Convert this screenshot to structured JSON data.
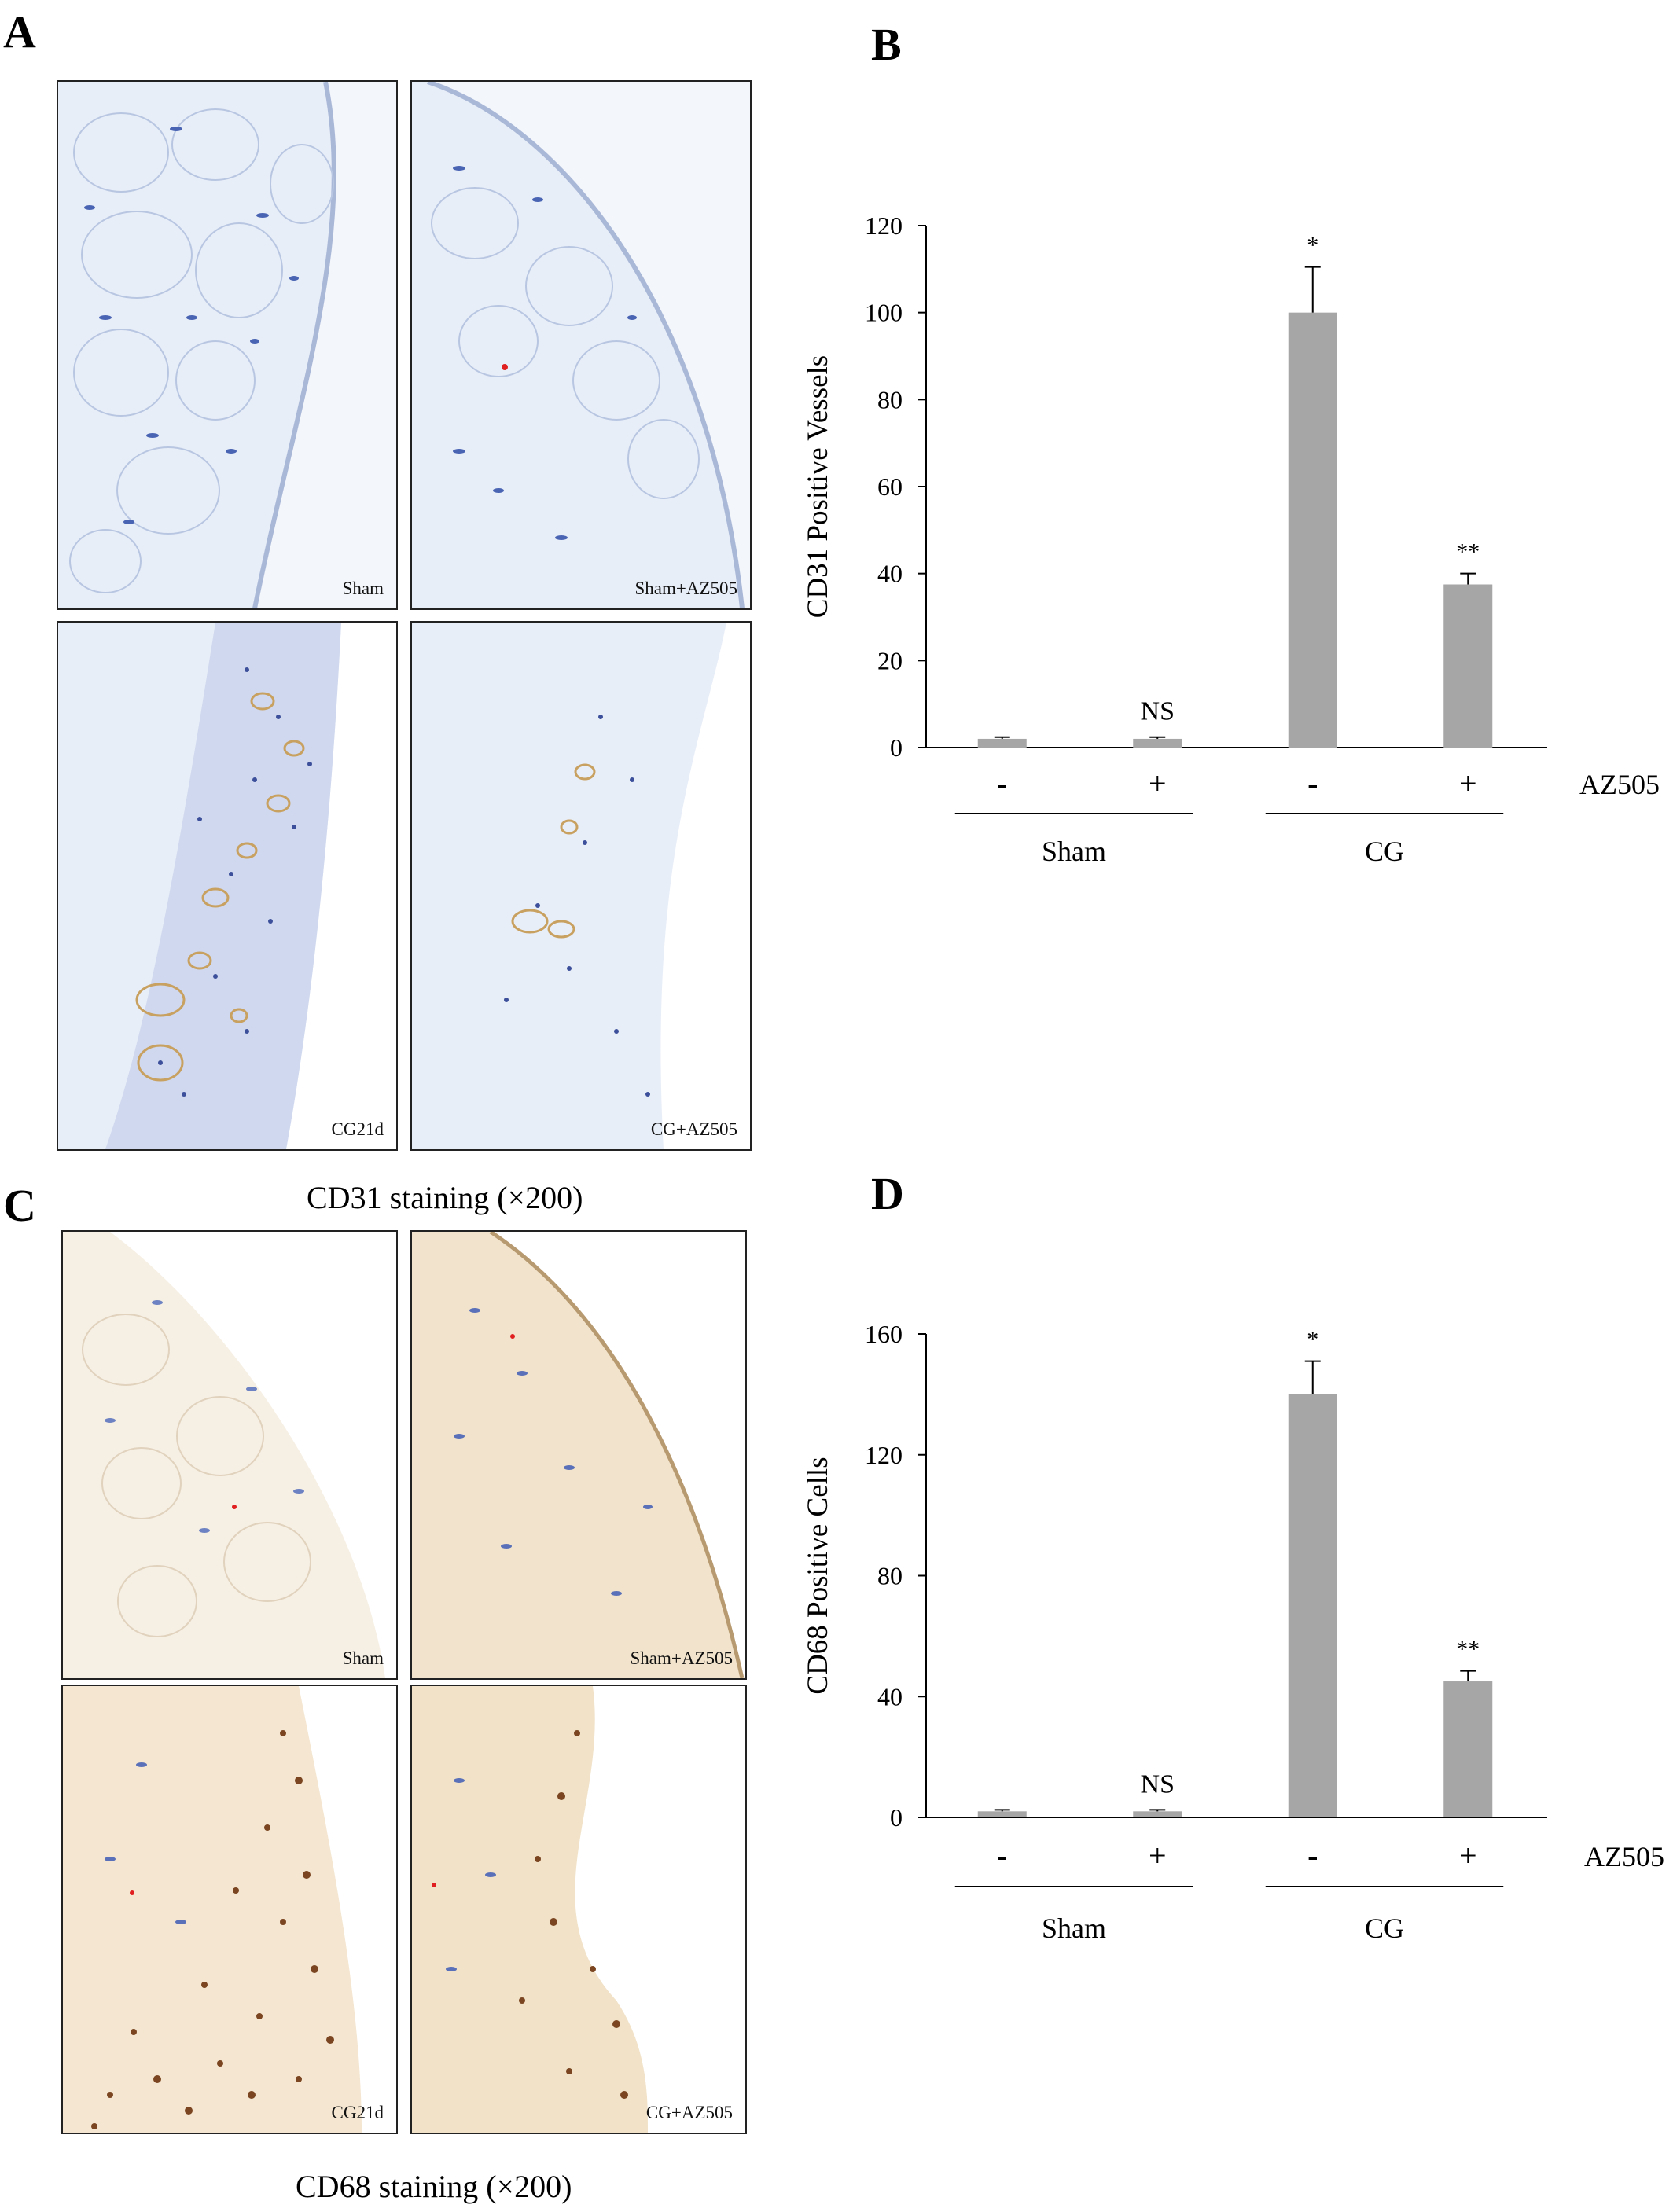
{
  "figure": {
    "panel_letters": {
      "A": "A",
      "B": "B",
      "C": "C",
      "D": "D"
    },
    "micrographs_a": {
      "caption": "CD31 staining (×200)",
      "labels": [
        "Sham",
        "Sham+AZ505",
        "CG21d",
        "CG+AZ505"
      ],
      "stain_color": "#c8a060"
    },
    "micrographs_c": {
      "caption": "CD68 staining (×200)",
      "labels": [
        "Sham",
        "Sham+AZ505",
        "CG21d",
        "CG+AZ505"
      ],
      "stain_color": "#7a4520"
    }
  },
  "chart_data": [
    {
      "id": "B",
      "type": "bar",
      "categories": [
        "-",
        "+",
        "-",
        "+"
      ],
      "groups": [
        {
          "label": "Sham",
          "categories": [
            0,
            1
          ]
        },
        {
          "label": "CG",
          "categories": [
            2,
            3
          ]
        }
      ],
      "factor_label": "AZ505",
      "series": [
        {
          "values": [
            2,
            2,
            100,
            37.5
          ],
          "errors": [
            0.4,
            0.4,
            10.5,
            2.5
          ]
        }
      ],
      "annotations": [
        "",
        "NS",
        "*",
        "**"
      ],
      "ylabel": "CD31 Positive Vessels",
      "ylim": [
        0,
        120
      ],
      "yticks": [
        0,
        20,
        40,
        60,
        80,
        100,
        120
      ],
      "bar_color": "#a6a6a6",
      "grid": false
    },
    {
      "id": "D",
      "type": "bar",
      "categories": [
        "-",
        "+",
        "-",
        "+"
      ],
      "groups": [
        {
          "label": "Sham",
          "categories": [
            0,
            1
          ]
        },
        {
          "label": "CG",
          "categories": [
            2,
            3
          ]
        }
      ],
      "factor_label": "AZ505",
      "series": [
        {
          "values": [
            2,
            2,
            140,
            45
          ],
          "errors": [
            0.5,
            0.5,
            11,
            3.5
          ]
        }
      ],
      "annotations": [
        "",
        "NS",
        "*",
        "**"
      ],
      "ylabel": "CD68 Positive Cells",
      "ylim": [
        0,
        160
      ],
      "yticks": [
        0,
        40,
        80,
        120,
        160
      ],
      "bar_color": "#a6a6a6",
      "grid": false
    }
  ]
}
